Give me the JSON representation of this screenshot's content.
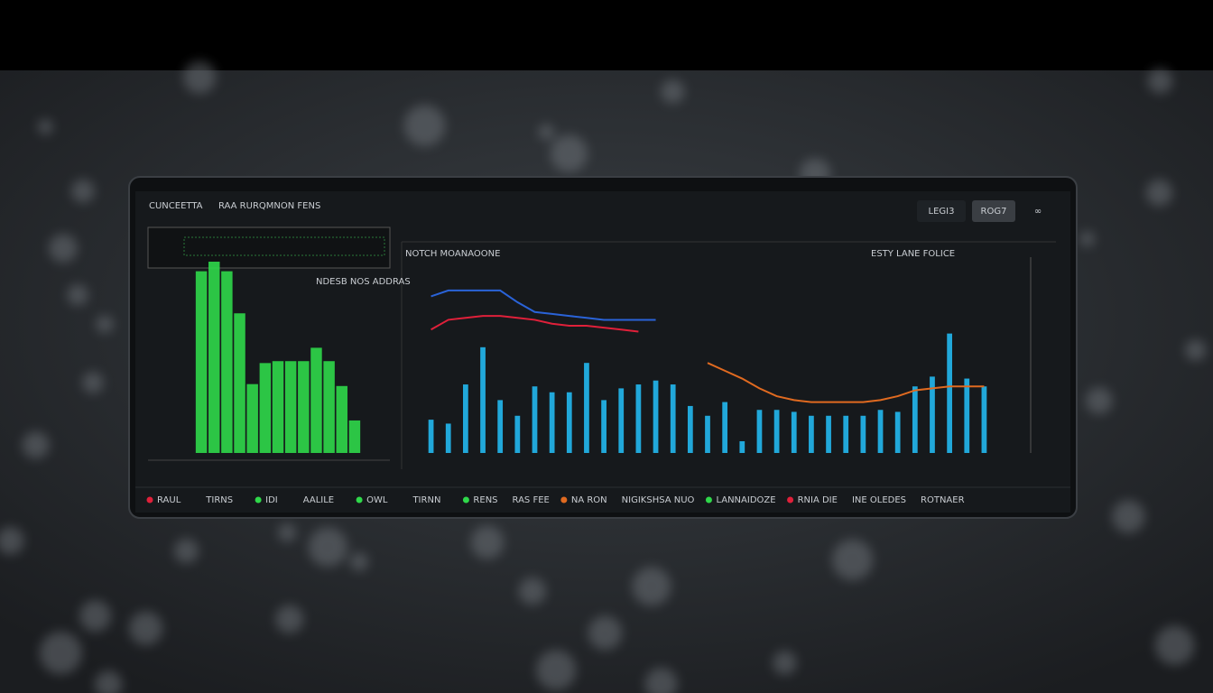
{
  "header": {
    "title": "CUNCEETTA",
    "subtitle": "RAA RURQMNON FENS",
    "buttons": [
      "LEGI3",
      "ROG7"
    ]
  },
  "chart_data": [
    {
      "type": "bar",
      "annotation": "NDESB NOS ADDRAS",
      "color": "#2fd84a",
      "ylim": [
        0,
        100
      ],
      "values": [
        95,
        100,
        95,
        73,
        36,
        47,
        48,
        48,
        48,
        55,
        48,
        35,
        17
      ]
    },
    {
      "type": "bar",
      "title": "NOTCH MOANAOONE",
      "annotation": "ESTY LANE FOLICE",
      "ylim": [
        0,
        100
      ],
      "series": [
        {
          "type": "bar",
          "color": "#22b8f0",
          "values": [
            17,
            15,
            35,
            54,
            27,
            19,
            34,
            31,
            31,
            46,
            27,
            33,
            35,
            37,
            35,
            24,
            19,
            26,
            6,
            22,
            22,
            21,
            19,
            19,
            19,
            19,
            22,
            21,
            34,
            39,
            61,
            38,
            34
          ]
        },
        {
          "type": "line",
          "color": "#2a63d8",
          "values": [
            80,
            83,
            83,
            83,
            83,
            77,
            72,
            71,
            70,
            69,
            68,
            68,
            68,
            68,
            null,
            null,
            null,
            null,
            null,
            null,
            null,
            null,
            null,
            null,
            null,
            null,
            null,
            null,
            null,
            null,
            null,
            null,
            null
          ]
        },
        {
          "type": "line",
          "color": "#e0203a",
          "values": [
            63,
            68,
            69,
            70,
            70,
            69,
            68,
            66,
            65,
            65,
            64,
            63,
            62,
            null,
            null,
            null,
            null,
            null,
            null,
            null,
            null,
            null,
            null,
            null,
            null,
            null,
            null,
            null,
            null,
            null,
            null,
            null,
            null
          ]
        },
        {
          "type": "line",
          "color": "#e06a20",
          "values": [
            null,
            null,
            null,
            null,
            null,
            null,
            null,
            null,
            null,
            null,
            null,
            null,
            null,
            null,
            null,
            null,
            46,
            42,
            38,
            33,
            29,
            27,
            26,
            26,
            26,
            26,
            27,
            29,
            32,
            33,
            34,
            34,
            34
          ]
        }
      ]
    }
  ],
  "footer": {
    "items": [
      "RAUL",
      "TIRNS",
      "IDI",
      "AALILE",
      "OWL",
      "TIRNN",
      "RENS",
      "RAS FEE",
      "NA RON",
      "NIGIKSHSA NUO",
      "LANNAIDOZE",
      "RNIA DIE",
      "INE OLEDES",
      "ROTNAER"
    ]
  }
}
